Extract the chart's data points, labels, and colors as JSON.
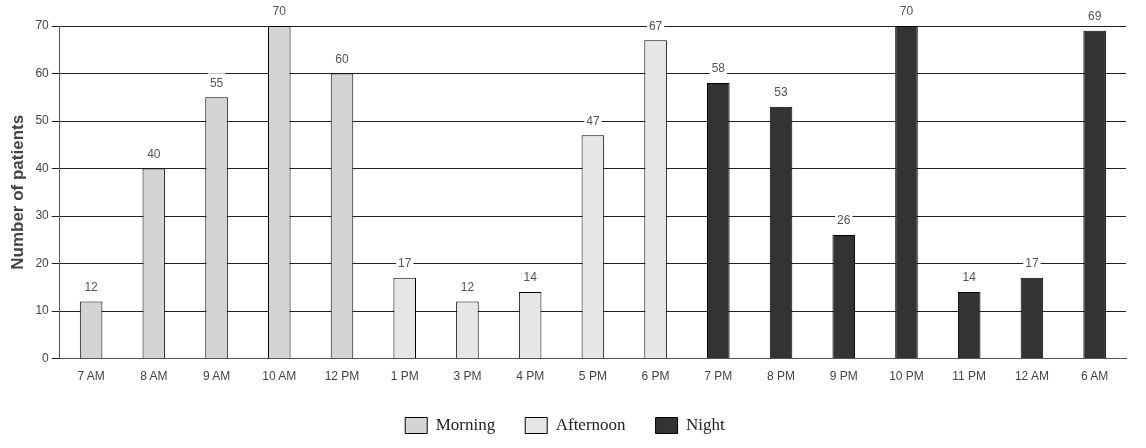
{
  "chart_data": {
    "type": "bar",
    "ylabel": "Number of patients",
    "categories": [
      "7 AM",
      "8 AM",
      "9 AM",
      "10 AM",
      "12 PM",
      "1 PM",
      "3 PM",
      "4 PM",
      "5 PM",
      "6 PM",
      "7 PM",
      "8 PM",
      "9 PM",
      "10 PM",
      "11 PM",
      "12 AM",
      "6 AM"
    ],
    "series": [
      {
        "name": "Morning",
        "color": "#d4d4d4",
        "values": [
          12,
          40,
          55,
          70,
          60,
          null,
          null,
          null,
          null,
          null,
          null,
          null,
          null,
          null,
          null,
          null,
          null
        ]
      },
      {
        "name": "Afternoon",
        "color": "#e6e6e6",
        "values": [
          null,
          null,
          null,
          null,
          null,
          17,
          12,
          14,
          47,
          67,
          null,
          null,
          null,
          null,
          null,
          null,
          null
        ]
      },
      {
        "name": "Night",
        "color": "#333333",
        "values": [
          null,
          null,
          null,
          null,
          null,
          null,
          null,
          null,
          null,
          null,
          58,
          53,
          26,
          70,
          14,
          17,
          69
        ]
      }
    ],
    "ylim": [
      0,
      70
    ],
    "yticks": [
      0,
      10,
      20,
      30,
      40,
      50,
      60,
      70
    ],
    "grid": "y",
    "legend": "bottom",
    "data_labels": true
  }
}
